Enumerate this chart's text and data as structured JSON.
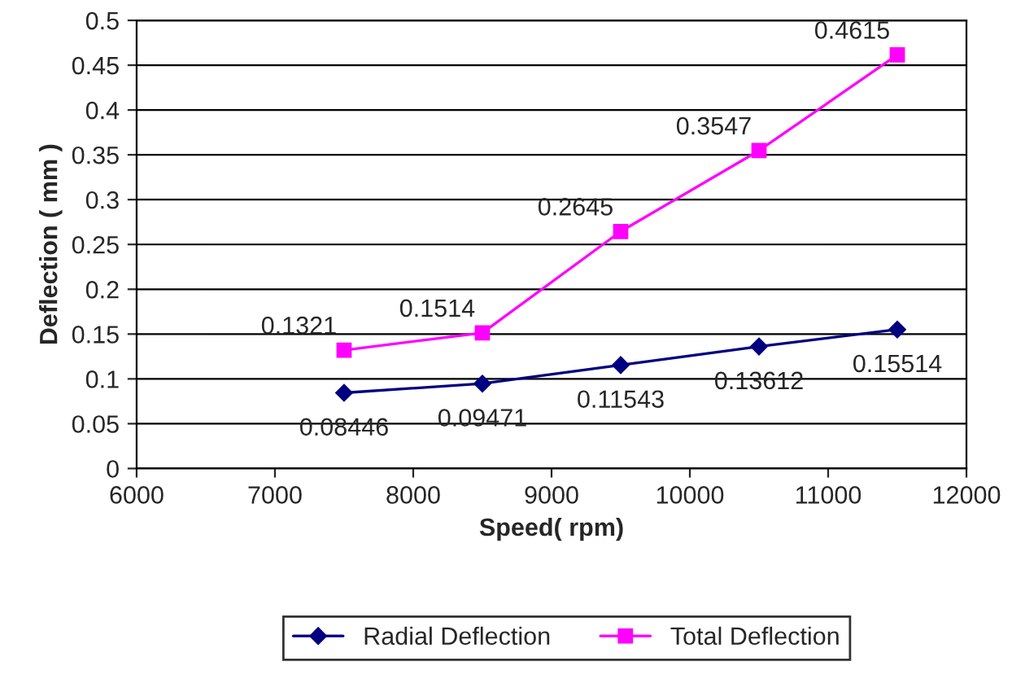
{
  "chart_data": {
    "type": "line",
    "xlabel": "Speed( rpm)",
    "ylabel": "Deflection ( mm )",
    "x": [
      7500,
      8500,
      9500,
      10500,
      11500
    ],
    "series": [
      {
        "name": "Radial Deflection",
        "color": "#000080",
        "marker": "diamond",
        "values": [
          0.08446,
          0.09471,
          0.11543,
          0.13612,
          0.15514
        ]
      },
      {
        "name": "Total Deflection",
        "color": "#ff00ff",
        "marker": "square",
        "values": [
          0.1321,
          0.1514,
          0.2645,
          0.3547,
          0.4615
        ]
      }
    ],
    "xlim": [
      6000,
      12000
    ],
    "xticks": [
      6000,
      7000,
      8000,
      9000,
      10000,
      11000,
      12000
    ],
    "ylim": [
      0,
      0.5
    ],
    "yticks": [
      0,
      0.05,
      0.1,
      0.15,
      0.2,
      0.25,
      0.3,
      0.35,
      0.4,
      0.45,
      0.5
    ],
    "grid": "y",
    "legend": "bottom",
    "data_labels": true,
    "line_style": "solid"
  }
}
